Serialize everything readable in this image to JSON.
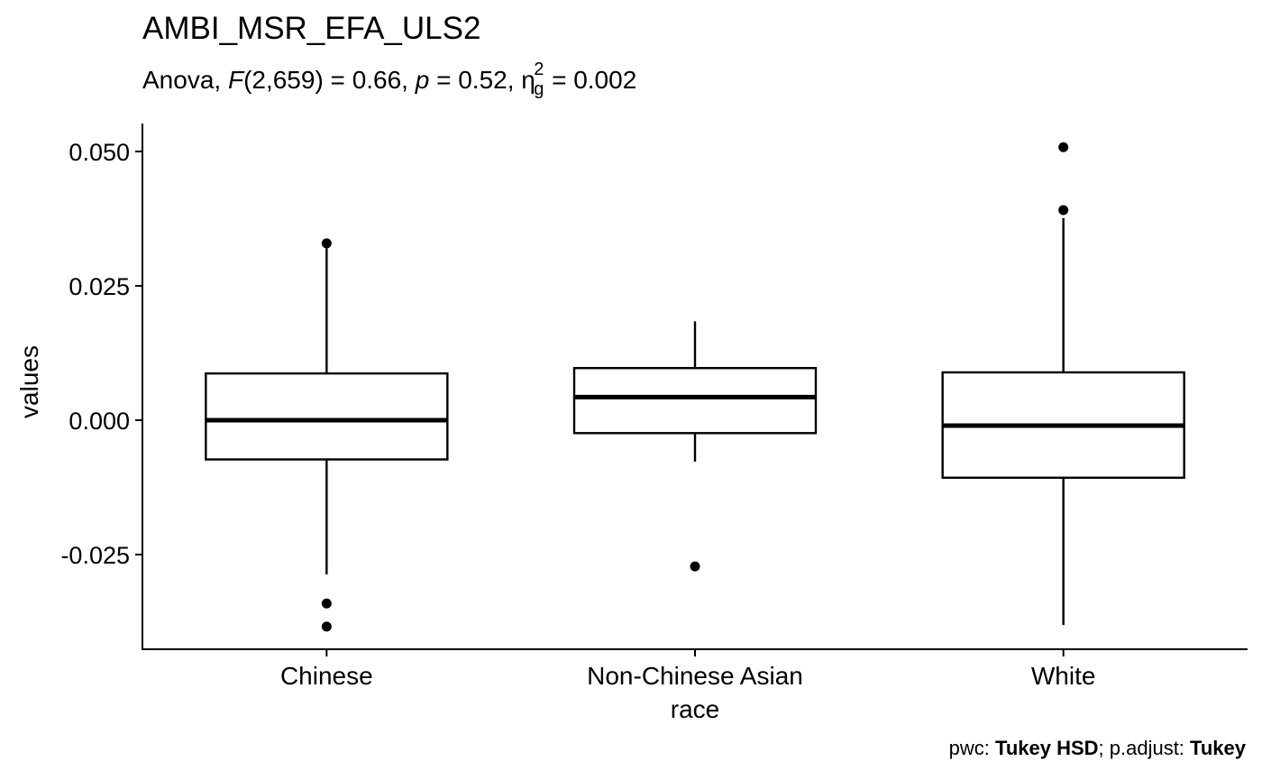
{
  "chart_data": {
    "type": "box",
    "title": "AMBI_MSR_EFA_ULS2",
    "subtitle": {
      "prefix": "Anova, ",
      "F_symbol": "F",
      "F_args": "(2,659) = 0.66, ",
      "p_symbol": "p",
      "p_text": " = 0.52, ",
      "eta_symbol": "η",
      "eta_sub": "g",
      "eta_sup": "2",
      "eta_text": " = 0.002"
    },
    "xlabel": "race",
    "ylabel": "values",
    "ylim": [
      -0.0425,
      0.0555
    ],
    "yticks": [
      -0.025,
      0.0,
      0.025,
      0.05
    ],
    "ytick_labels": [
      "-0.025",
      "0.000",
      "0.025",
      "0.050"
    ],
    "grid": false,
    "categories": [
      "Chinese",
      "Non-Chinese Asian",
      "White"
    ],
    "boxes": [
      {
        "category": "Chinese",
        "whisker_low": -0.0287,
        "q1": -0.0073,
        "median": 0.0,
        "q3": 0.0087,
        "whisker_high": 0.0328,
        "outliers": [
          0.0329,
          -0.0341,
          -0.0384
        ]
      },
      {
        "category": "Non-Chinese Asian",
        "whisker_low": -0.0077,
        "q1": -0.0024,
        "median": 0.0043,
        "q3": 0.0097,
        "whisker_high": 0.0184,
        "outliers": [
          -0.0272
        ]
      },
      {
        "category": "White",
        "whisker_low": -0.0381,
        "q1": -0.0107,
        "median": -0.001,
        "q3": 0.0089,
        "whisker_high": 0.0376,
        "outliers": [
          0.0508,
          0.0391
        ]
      }
    ],
    "caption": {
      "pwc_label": "pwc: ",
      "pwc_value": "Tukey HSD",
      "sep": "; p.adjust: ",
      "adjust_value": "Tukey"
    }
  }
}
